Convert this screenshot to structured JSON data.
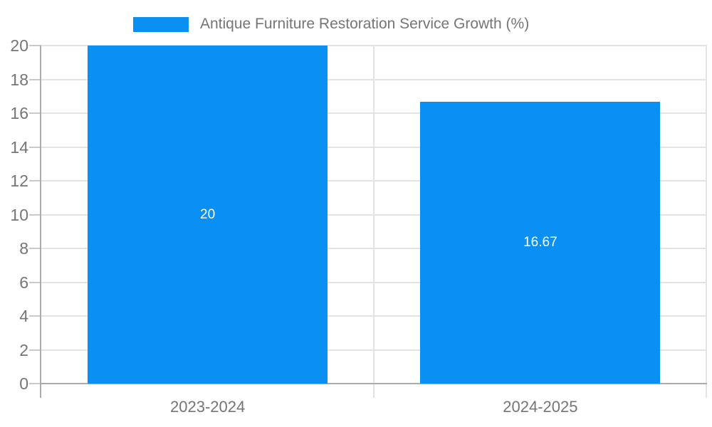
{
  "chart_data": {
    "type": "bar",
    "title": "Antique Furniture Restoration Service Growth (%)",
    "categories": [
      "2023-2024",
      "2024-2025"
    ],
    "values": [
      20,
      16.67
    ],
    "value_labels": [
      "20",
      "16.67"
    ],
    "ylim": [
      0,
      20
    ],
    "ytick_step": 2,
    "ytick_labels": [
      "0",
      "2",
      "4",
      "6",
      "8",
      "10",
      "12",
      "14",
      "16",
      "18",
      "20"
    ],
    "xlabel": "",
    "ylabel": "",
    "grid": true,
    "legend": {
      "position": "top-center"
    },
    "colors": {
      "bar": "#0a90f2",
      "bar_label": "#ffffff",
      "axis": "#ababab",
      "gridline": "#e3e3e3",
      "tick": "#c9c9c9",
      "text": "#757575",
      "background": "#ffffff"
    }
  }
}
